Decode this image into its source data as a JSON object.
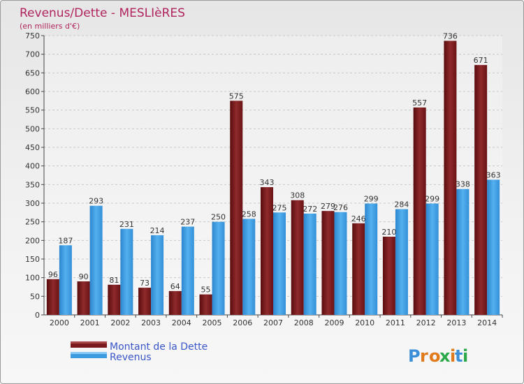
{
  "title": "Revenus/Dette - MESLIèRES",
  "subtitle": "(en milliers d'€)",
  "logo_text": "Proxiti",
  "colors": {
    "debt": "#7b1a1c",
    "revenue": "#3d9ce0",
    "title": "#b0245e",
    "legend_text": "#3a56c8"
  },
  "chart_data": {
    "type": "bar",
    "categories": [
      "2000",
      "2001",
      "2002",
      "2003",
      "2004",
      "2005",
      "2006",
      "2007",
      "2008",
      "2009",
      "2010",
      "2011",
      "2012",
      "2013",
      "2014"
    ],
    "series": [
      {
        "name": "Montant de la Dette",
        "values": [
          96,
          90,
          81,
          73,
          64,
          55,
          575,
          343,
          308,
          279,
          246,
          210,
          557,
          736,
          671
        ]
      },
      {
        "name": "Revenus",
        "values": [
          187,
          293,
          231,
          214,
          237,
          250,
          258,
          275,
          272,
          276,
          299,
          284,
          299,
          338,
          363
        ]
      }
    ],
    "ylim": [
      0,
      750
    ],
    "yticks": [
      0,
      50,
      100,
      150,
      200,
      250,
      300,
      350,
      400,
      450,
      500,
      550,
      600,
      650,
      700,
      750
    ],
    "grid": true,
    "legend_position": "bottom-left"
  }
}
